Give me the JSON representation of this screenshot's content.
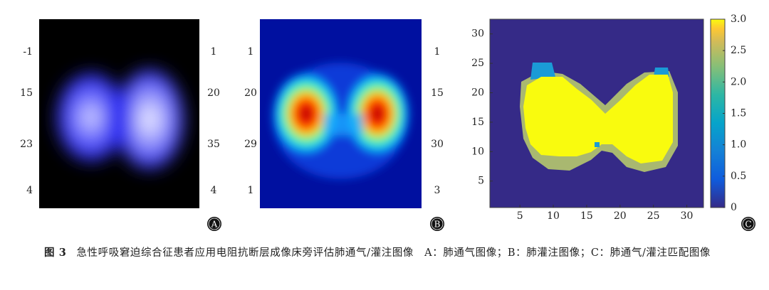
{
  "panels": [
    {
      "label": "A",
      "left_labels": [
        "-1",
        "15",
        "23",
        "4"
      ],
      "right_labels": [
        "1",
        "20",
        "35",
        "4"
      ]
    },
    {
      "label": "B",
      "left_labels": [
        "1",
        "20",
        "29",
        "1"
      ],
      "right_labels": [
        "1",
        "15",
        "30",
        "3"
      ]
    }
  ],
  "chart_data": {
    "type": "heatmap",
    "label": "C",
    "xlim": [
      0.5,
      32.5
    ],
    "ylim": [
      0.5,
      32.5
    ],
    "xticks": [
      5,
      10,
      15,
      20,
      25,
      30
    ],
    "yticks": [
      5,
      10,
      15,
      20,
      25,
      30
    ],
    "colorbar": {
      "lim": [
        0,
        3
      ],
      "ticks": [
        0,
        0.5,
        {
          "value": 1,
          "label": "1.0"
        },
        1.5,
        {
          "value": 2,
          "label": "2.0"
        },
        2.5,
        {
          "value": 3,
          "label": "3.0"
        }
      ]
    }
  },
  "caption": {
    "label": "图 3",
    "text": "急性呼吸窘迫综合征患者应用电阻抗断层成像床旁评估肺通气/灌注图像　A：肺通气图像；B：肺灌注图像；C：肺通气/灌注匹配图像"
  }
}
